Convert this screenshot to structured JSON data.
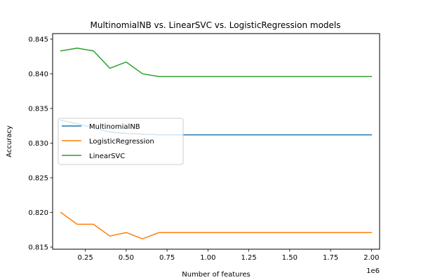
{
  "chart_data": {
    "type": "line",
    "title": "MultinomialNB vs. LinearSVC vs. LogisticRegression models",
    "xlabel": "Number of features",
    "ylabel": "Accuracy",
    "x_offset_label": "1e6",
    "xlim": [
      0.05,
      2.05
    ],
    "ylim": [
      0.8147,
      0.8458
    ],
    "x_ticks": [
      0.25,
      0.5,
      0.75,
      1.0,
      1.25,
      1.5,
      1.75,
      2.0
    ],
    "x_tick_labels": [
      "0.25",
      "0.50",
      "0.75",
      "1.00",
      "1.25",
      "1.50",
      "1.75",
      "2.00"
    ],
    "y_ticks": [
      0.815,
      0.82,
      0.825,
      0.83,
      0.835,
      0.84,
      0.845
    ],
    "y_tick_labels": [
      "0.815",
      "0.820",
      "0.825",
      "0.830",
      "0.835",
      "0.840",
      "0.845"
    ],
    "grid": false,
    "legend_position": "center-left",
    "x": [
      0.1,
      0.2,
      0.3,
      0.4,
      0.5,
      0.6,
      0.7,
      0.8,
      0.9,
      1.0,
      1.1,
      1.2,
      1.3,
      1.4,
      1.5,
      1.6,
      1.7,
      1.8,
      1.9,
      2.0
    ],
    "series": [
      {
        "name": "MultinomialNB",
        "color": "#1f77b4",
        "values": [
          0.8333,
          0.8328,
          0.8322,
          0.8316,
          0.8314,
          0.8313,
          0.8312,
          0.8312,
          0.8312,
          0.8312,
          0.8312,
          0.8312,
          0.8312,
          0.8312,
          0.8312,
          0.8312,
          0.8312,
          0.8312,
          0.8312,
          0.8312
        ]
      },
      {
        "name": "LogisticRegression",
        "color": "#ff7f0e",
        "values": [
          0.82,
          0.8183,
          0.8183,
          0.8166,
          0.8171,
          0.8162,
          0.8171,
          0.8171,
          0.8171,
          0.8171,
          0.8171,
          0.8171,
          0.8171,
          0.8171,
          0.8171,
          0.8171,
          0.8171,
          0.8171,
          0.8171,
          0.8171
        ]
      },
      {
        "name": "LinearSVC",
        "color": "#2ca02c",
        "values": [
          0.8433,
          0.8437,
          0.8433,
          0.8408,
          0.8417,
          0.84,
          0.8396,
          0.8396,
          0.8396,
          0.8396,
          0.8396,
          0.8396,
          0.8396,
          0.8396,
          0.8396,
          0.8396,
          0.8396,
          0.8396,
          0.8396,
          0.8396
        ]
      }
    ]
  }
}
